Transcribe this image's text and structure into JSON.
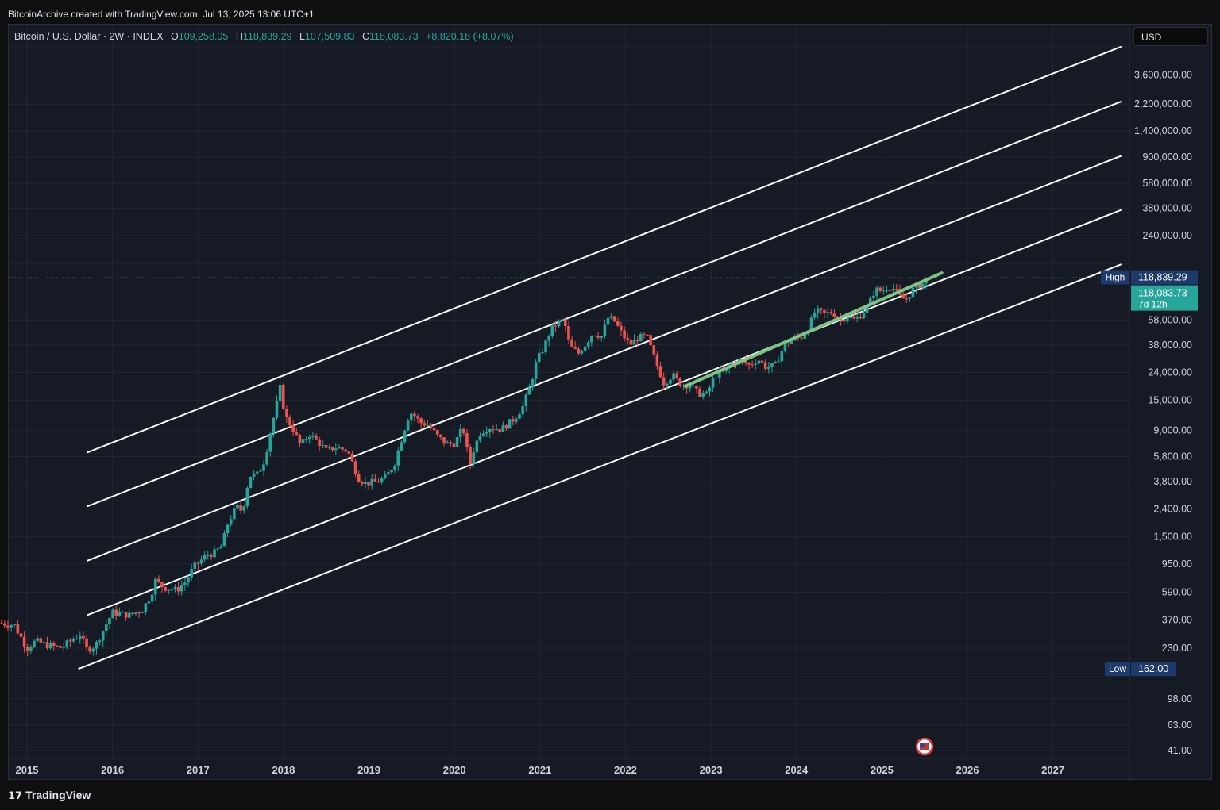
{
  "header": {
    "credit": "BitcoinArchive created with TradingView.com, Jul 13, 2025 13:06 UTC+1"
  },
  "legend": {
    "symbol": "Bitcoin / U.S. Dollar · 2W · INDEX",
    "open_label": "O",
    "open": "109,258.05",
    "high_label": "H",
    "high": "118,839.29",
    "low_label": "L",
    "low": "107,509.83",
    "close_label": "C",
    "close": "118,083.73",
    "change": "+8,820.18 (+8.07%)"
  },
  "currency_button": "USD",
  "footer": {
    "brand": "TradingView",
    "logo_icon": "tradingview-logo-icon"
  },
  "colors": {
    "up": "#26a69a",
    "down": "#ef5350",
    "trend": "#7dc383",
    "channel": "#ffffff",
    "background": "#161a25"
  },
  "markers": {
    "high_label": "High",
    "high_value": "118,839.29",
    "low_label": "Low",
    "low_value": "162.00",
    "last_price": "118,083.73",
    "countdown": "7d 12h",
    "event_icon": "us-flag-icon"
  },
  "chart_data": {
    "type": "candlestick",
    "scale": "log",
    "title": "",
    "y_ticks": [
      41,
      63,
      98,
      150,
      230,
      370,
      590,
      950,
      1500,
      2400,
      3800,
      5800,
      9000,
      15000,
      24000,
      38000,
      58000,
      90000,
      150000,
      240000,
      380000,
      580000,
      900000,
      1400000,
      2200000,
      3600000,
      5800000
    ],
    "y_tick_labels": [
      "41.00",
      "63.00",
      "98.00",
      "",
      "230.00",
      "370.00",
      "590.00",
      "950.00",
      "1,500.00",
      "2,400.00",
      "3,800.00",
      "5,800.00",
      "9,000.00",
      "15,000.00",
      "24,000.00",
      "38,000.00",
      "58,000.00",
      "",
      "",
      "240,000.00",
      "380,000.00",
      "580,000.00",
      "900,000.00",
      "1,400,000.00",
      "2,200,000.00",
      "3,600,000.00",
      ""
    ],
    "x_ticks": [
      2015,
      2016,
      2017,
      2018,
      2019,
      2020,
      2021,
      2022,
      2023,
      2024,
      2025,
      2026,
      2027
    ],
    "x_tick_labels": [
      "2015",
      "2016",
      "2017",
      "2018",
      "2019",
      "2020",
      "2021",
      "2022",
      "2023",
      "2024",
      "2025",
      "2026",
      "2027"
    ],
    "price_path": [
      [
        2014.7,
        350
      ],
      [
        2014.85,
        340
      ],
      [
        2015.0,
        230
      ],
      [
        2015.1,
        260
      ],
      [
        2015.25,
        240
      ],
      [
        2015.4,
        232
      ],
      [
        2015.55,
        270
      ],
      [
        2015.62,
        290
      ],
      [
        2015.7,
        225
      ],
      [
        2015.8,
        240
      ],
      [
        2015.9,
        320
      ],
      [
        2016.0,
        420
      ],
      [
        2016.2,
        400
      ],
      [
        2016.35,
        440
      ],
      [
        2016.45,
        560
      ],
      [
        2016.5,
        720
      ],
      [
        2016.6,
        640
      ],
      [
        2016.75,
        610
      ],
      [
        2016.85,
        700
      ],
      [
        2016.95,
        900
      ],
      [
        2017.1,
        1100
      ],
      [
        2017.2,
        1150
      ],
      [
        2017.28,
        1300
      ],
      [
        2017.35,
        1900
      ],
      [
        2017.45,
        2500
      ],
      [
        2017.52,
        2300
      ],
      [
        2017.6,
        4200
      ],
      [
        2017.7,
        4300
      ],
      [
        2017.78,
        5500
      ],
      [
        2017.85,
        9000
      ],
      [
        2017.92,
        14000
      ],
      [
        2017.96,
        18500
      ],
      [
        2018.02,
        11500
      ],
      [
        2018.1,
        9500
      ],
      [
        2018.2,
        7000
      ],
      [
        2018.3,
        8500
      ],
      [
        2018.4,
        7500
      ],
      [
        2018.5,
        6400
      ],
      [
        2018.6,
        6800
      ],
      [
        2018.75,
        6400
      ],
      [
        2018.88,
        4000
      ],
      [
        2018.96,
        3700
      ],
      [
        2019.1,
        3800
      ],
      [
        2019.2,
        4100
      ],
      [
        2019.3,
        5200
      ],
      [
        2019.38,
        7800
      ],
      [
        2019.45,
        11000
      ],
      [
        2019.5,
        12200
      ],
      [
        2019.6,
        10300
      ],
      [
        2019.7,
        9800
      ],
      [
        2019.8,
        8200
      ],
      [
        2019.9,
        7200
      ],
      [
        2020.0,
        7200
      ],
      [
        2020.1,
        9500
      ],
      [
        2020.18,
        5000
      ],
      [
        2020.22,
        6400
      ],
      [
        2020.3,
        8700
      ],
      [
        2020.4,
        9500
      ],
      [
        2020.55,
        9200
      ],
      [
        2020.7,
        11000
      ],
      [
        2020.8,
        13500
      ],
      [
        2020.88,
        18500
      ],
      [
        2020.96,
        29000
      ],
      [
        2021.05,
        37000
      ],
      [
        2021.12,
        48000
      ],
      [
        2021.2,
        55000
      ],
      [
        2021.28,
        58000
      ],
      [
        2021.35,
        37000
      ],
      [
        2021.45,
        33000
      ],
      [
        2021.55,
        40000
      ],
      [
        2021.62,
        47000
      ],
      [
        2021.72,
        44000
      ],
      [
        2021.8,
        61000
      ],
      [
        2021.87,
        57000
      ],
      [
        2021.95,
        47000
      ],
      [
        2022.05,
        38000
      ],
      [
        2022.15,
        43000
      ],
      [
        2022.25,
        44000
      ],
      [
        2022.35,
        29000
      ],
      [
        2022.45,
        20000
      ],
      [
        2022.55,
        23000
      ],
      [
        2022.65,
        19500
      ],
      [
        2022.75,
        19500
      ],
      [
        2022.85,
        16800
      ],
      [
        2022.95,
        16500
      ],
      [
        2023.05,
        23000
      ],
      [
        2023.15,
        24000
      ],
      [
        2023.25,
        28000
      ],
      [
        2023.35,
        29500
      ],
      [
        2023.45,
        27000
      ],
      [
        2023.55,
        30000
      ],
      [
        2023.65,
        26000
      ],
      [
        2023.75,
        27000
      ],
      [
        2023.85,
        37000
      ],
      [
        2023.95,
        42000
      ],
      [
        2024.05,
        43000
      ],
      [
        2024.15,
        52000
      ],
      [
        2024.22,
        68000
      ],
      [
        2024.32,
        64000
      ],
      [
        2024.42,
        66000
      ],
      [
        2024.52,
        58000
      ],
      [
        2024.6,
        62000
      ],
      [
        2024.68,
        58000
      ],
      [
        2024.76,
        64000
      ],
      [
        2024.85,
        76000
      ],
      [
        2024.92,
        97000
      ],
      [
        2025.0,
        94000
      ],
      [
        2025.08,
        102000
      ],
      [
        2025.15,
        97000
      ],
      [
        2025.22,
        84000
      ],
      [
        2025.28,
        82000
      ],
      [
        2025.35,
        95000
      ],
      [
        2025.42,
        104000
      ],
      [
        2025.48,
        107000
      ],
      [
        2025.53,
        118000
      ]
    ],
    "channel_lines": [
      {
        "x": [
          2015.7,
          2027.8
        ],
        "y": [
          6200,
          5800000
        ]
      },
      {
        "x": [
          2015.7,
          2027.8
        ],
        "y": [
          2500,
          2300000
        ]
      },
      {
        "x": [
          2015.7,
          2027.8
        ],
        "y": [
          1000,
          920000
        ]
      },
      {
        "x": [
          2015.7,
          2027.8
        ],
        "y": [
          400,
          370000
        ]
      },
      {
        "x": [
          2015.6,
          2027.8
        ],
        "y": [
          162,
          148000
        ]
      }
    ],
    "trend_line": {
      "x": [
        2022.7,
        2025.7
      ],
      "y": [
        19000,
        128000
      ]
    },
    "high": 118839.29,
    "low": 162.0,
    "last": 118083.73
  }
}
